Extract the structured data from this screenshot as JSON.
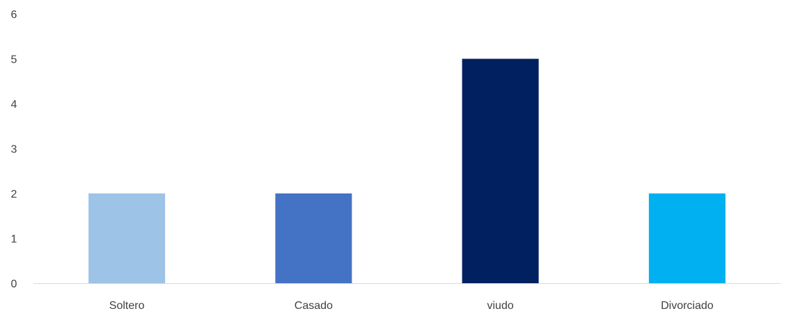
{
  "chart_data": {
    "type": "bar",
    "categories": [
      "Soltero",
      "Casado",
      "viudo",
      "Divorciado"
    ],
    "values": [
      2,
      2,
      5,
      2
    ],
    "bar_colors": [
      "#9DC3E6",
      "#4472C4",
      "#002060",
      "#00B0F0"
    ],
    "y_ticks": [
      "0",
      "1",
      "2",
      "3",
      "4",
      "5",
      "6"
    ],
    "ylim": [
      0,
      6
    ],
    "grid": false,
    "legend": "none"
  }
}
